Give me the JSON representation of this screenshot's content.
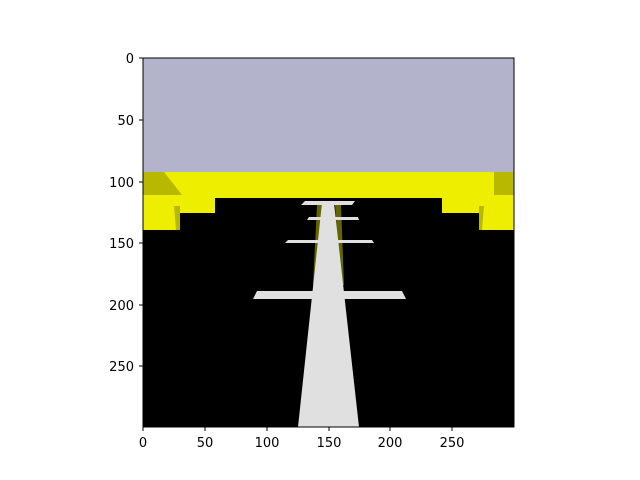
{
  "colors": {
    "sky": "#b3b3cc",
    "barrier": "#eeee00",
    "barrier_shade": "#b8b800",
    "ground": "#000000",
    "road_marking": "#e0e0e0",
    "axis": "#000000"
  },
  "axes": {
    "x_ticks": [
      "0",
      "50",
      "100",
      "150",
      "200",
      "250"
    ],
    "y_ticks": [
      "0",
      "50",
      "100",
      "150",
      "200",
      "250"
    ]
  }
}
